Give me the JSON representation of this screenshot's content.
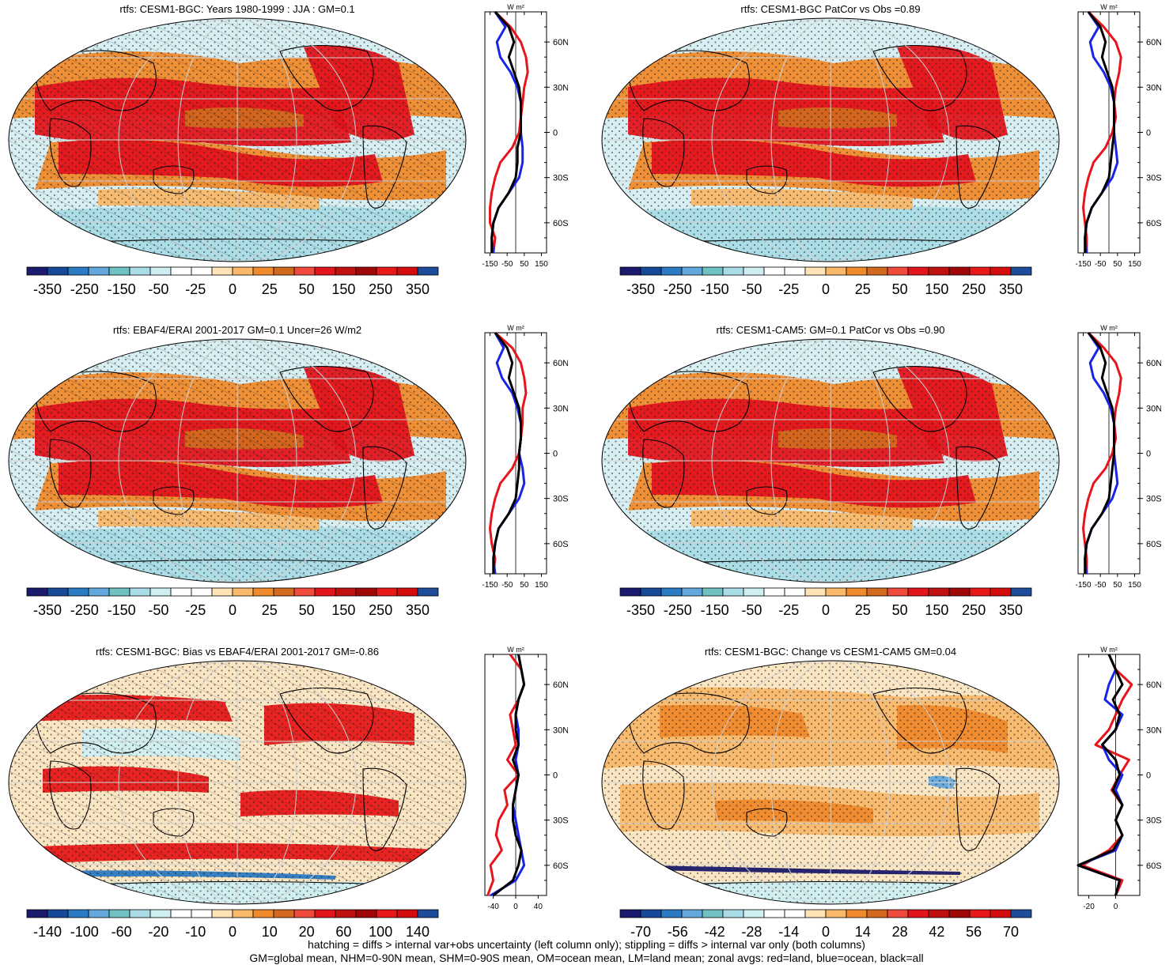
{
  "panels": [
    {
      "title": "rtfs: CESM1-BGC: Years 1980-1999 : JJA : GM=0.1",
      "colorbar": {
        "labels": [
          "-350",
          "-250",
          "-150",
          "-50",
          "-25",
          "0",
          "25",
          "50",
          "150",
          "250",
          "350"
        ]
      },
      "zonal": {
        "unit_label": "W m²",
        "xticks": [
          "-150",
          "-50",
          "50",
          "150"
        ],
        "xlim": [
          -180,
          180
        ],
        "lat_labels": [
          "60N",
          "30N",
          "0",
          "30S",
          "60S"
        ]
      }
    },
    {
      "title": "rtfs: CESM1-BGC PatCor vs Obs =0.89",
      "colorbar": {
        "labels": [
          "-350",
          "-250",
          "-150",
          "-50",
          "-25",
          "0",
          "25",
          "50",
          "150",
          "250",
          "350"
        ]
      },
      "zonal": {
        "unit_label": "W m²",
        "xticks": [
          "-150",
          "-50",
          "50",
          "150"
        ],
        "xlim": [
          -180,
          180
        ],
        "lat_labels": [
          "60N",
          "30N",
          "0",
          "30S",
          "60S"
        ]
      }
    },
    {
      "title": "rtfs: EBAF4/ERAI 2001-2017 GM=0.1 Uncer=26 W/m2",
      "colorbar": {
        "labels": [
          "-350",
          "-250",
          "-150",
          "-50",
          "-25",
          "0",
          "25",
          "50",
          "150",
          "250",
          "350"
        ]
      },
      "zonal": {
        "unit_label": "W m²",
        "xticks": [
          "-150",
          "-50",
          "50",
          "150"
        ],
        "xlim": [
          -180,
          180
        ],
        "lat_labels": [
          "60N",
          "30N",
          "0",
          "30S",
          "60S"
        ]
      }
    },
    {
      "title": "rtfs: CESM1-CAM5: GM=0.1 PatCor vs Obs =0.90",
      "colorbar": {
        "labels": [
          "-350",
          "-250",
          "-150",
          "-50",
          "-25",
          "0",
          "25",
          "50",
          "150",
          "250",
          "350"
        ]
      },
      "zonal": {
        "unit_label": "W m²",
        "xticks": [
          "-150",
          "-50",
          "50",
          "150"
        ],
        "xlim": [
          -180,
          180
        ],
        "lat_labels": [
          "60N",
          "30N",
          "0",
          "30S",
          "60S"
        ]
      }
    },
    {
      "title": "rtfs: CESM1-BGC: Bias vs EBAF4/ERAI 2001-2017 GM=-0.86",
      "colorbar": {
        "labels": [
          "-140",
          "-100",
          "-60",
          "-20",
          "-10",
          "0",
          "10",
          "20",
          "60",
          "100",
          "140"
        ]
      },
      "zonal": {
        "unit_label": "W m²",
        "xticks": [
          "-40",
          "0",
          "40"
        ],
        "xlim": [
          -55,
          55
        ],
        "lat_labels": [
          "60N",
          "30N",
          "0",
          "30S",
          "60S"
        ]
      }
    },
    {
      "title": "rtfs: CESM1-BGC: Change vs CESM1-CAM5 GM=0.04",
      "colorbar": {
        "labels": [
          "-70",
          "-56",
          "-42",
          "-28",
          "-14",
          "0",
          "14",
          "28",
          "42",
          "56",
          "70"
        ]
      },
      "zonal": {
        "unit_label": "W m²",
        "xticks": [
          "-20",
          "0"
        ],
        "xlim": [
          -28,
          18
        ],
        "lat_labels": [
          "60N",
          "30N",
          "0",
          "30S",
          "60S"
        ]
      }
    }
  ],
  "colorbar_colors": [
    "#1a1a6e",
    "#164a98",
    "#2a7ac4",
    "#62a8dc",
    "#70c2c2",
    "#a9dce6",
    "#cfeef2",
    "#ffffff",
    "#ffffff",
    "#fde3b5",
    "#f9b86a",
    "#f08a2c",
    "#d2691e",
    "#f04a3c",
    "#e4141c",
    "#c01010",
    "#a00808",
    "#e81818",
    "#d40c0c",
    "#1c4c9a"
  ],
  "chart_data": [
    {
      "type": "map",
      "panel": 1,
      "title": "rtfs: CESM1-BGC: Years 1980-1999 : JJA : GM=0.1",
      "zonal_profile": {
        "lat": [
          80,
          70,
          60,
          50,
          40,
          30,
          20,
          10,
          0,
          -10,
          -20,
          -30,
          -40,
          -50,
          -60,
          -70,
          -80
        ],
        "land": [
          -120,
          -30,
          30,
          60,
          70,
          50,
          40,
          30,
          20,
          -20,
          -90,
          -120,
          -140,
          -150,
          -150,
          -120,
          -130
        ],
        "ocean": [
          -120,
          -60,
          -110,
          -90,
          -30,
          10,
          30,
          30,
          30,
          40,
          40,
          20,
          -40,
          -100,
          -130,
          -140,
          -130
        ],
        "all": [
          -120,
          -40,
          -10,
          -40,
          -10,
          20,
          30,
          30,
          30,
          10,
          10,
          0,
          -40,
          -100,
          -130,
          -140,
          -140
        ]
      }
    },
    {
      "type": "map",
      "panel": 2,
      "title": "rtfs: CESM1-BGC PatCor vs Obs =0.89",
      "zonal_profile": {
        "lat": [
          80,
          70,
          60,
          50,
          40,
          30,
          20,
          10,
          0,
          -10,
          -20,
          -30,
          -40,
          -50,
          -60,
          -70,
          -80
        ],
        "land": [
          -120,
          -30,
          40,
          70,
          60,
          40,
          30,
          40,
          20,
          -20,
          -90,
          -120,
          -140,
          -150,
          -140,
          -130,
          -130
        ],
        "ocean": [
          -120,
          -60,
          -110,
          -90,
          -30,
          10,
          30,
          30,
          30,
          40,
          50,
          20,
          -40,
          -100,
          -130,
          -140,
          -130
        ],
        "all": [
          -120,
          -50,
          -20,
          -40,
          -10,
          20,
          30,
          30,
          30,
          20,
          10,
          0,
          -40,
          -100,
          -130,
          -140,
          -140
        ]
      }
    },
    {
      "type": "map",
      "panel": 3,
      "title": "rtfs: EBAF4/ERAI 2001-2017 GM=0.1 Uncer=26 W/m2",
      "zonal_profile": {
        "lat": [
          80,
          70,
          60,
          50,
          40,
          30,
          20,
          10,
          0,
          -10,
          -20,
          -30,
          -40,
          -50,
          -60,
          -70,
          -80
        ],
        "land": [
          -120,
          -20,
          30,
          50,
          60,
          40,
          40,
          30,
          20,
          -20,
          -90,
          -120,
          -140,
          -150,
          -140,
          -120,
          -130
        ],
        "ocean": [
          -120,
          -70,
          -110,
          -80,
          -20,
          10,
          30,
          30,
          20,
          40,
          50,
          20,
          -40,
          -100,
          -120,
          -130,
          -120
        ],
        "all": [
          -120,
          -50,
          -20,
          -40,
          -10,
          20,
          30,
          30,
          20,
          20,
          10,
          0,
          -40,
          -100,
          -120,
          -130,
          -130
        ]
      }
    },
    {
      "type": "map",
      "panel": 4,
      "title": "rtfs: CESM1-CAM5: GM=0.1 PatCor vs Obs =0.90",
      "zonal_profile": {
        "lat": [
          80,
          70,
          60,
          50,
          40,
          30,
          20,
          10,
          0,
          -10,
          -20,
          -30,
          -40,
          -50,
          -60,
          -70,
          -80
        ],
        "land": [
          -120,
          -30,
          40,
          70,
          60,
          40,
          30,
          40,
          20,
          -20,
          -90,
          -120,
          -140,
          -150,
          -140,
          -130,
          -130
        ],
        "ocean": [
          -120,
          -60,
          -110,
          -90,
          -30,
          10,
          30,
          30,
          30,
          40,
          50,
          20,
          -40,
          -100,
          -130,
          -140,
          -130
        ],
        "all": [
          -120,
          -50,
          -20,
          -40,
          -10,
          20,
          30,
          30,
          30,
          20,
          10,
          0,
          -40,
          -100,
          -130,
          -140,
          -140
        ]
      }
    },
    {
      "type": "map",
      "panel": 5,
      "title": "rtfs: CESM1-BGC: Bias vs EBAF4/ERAI 2001-2017 GM=-0.86",
      "zonal_profile": {
        "lat": [
          80,
          70,
          60,
          50,
          40,
          30,
          20,
          10,
          0,
          -10,
          -20,
          -30,
          -40,
          -50,
          -60,
          -70,
          -80
        ],
        "land": [
          -10,
          10,
          15,
          5,
          -10,
          -5,
          0,
          -15,
          5,
          -20,
          -15,
          -30,
          -35,
          -25,
          -45,
          -40,
          -50
        ],
        "ocean": [
          5,
          10,
          15,
          5,
          0,
          5,
          5,
          0,
          5,
          0,
          -5,
          0,
          5,
          10,
          15,
          0,
          -45
        ],
        "all": [
          5,
          10,
          15,
          5,
          0,
          0,
          5,
          -5,
          5,
          0,
          -5,
          -5,
          0,
          10,
          5,
          -5,
          -40
        ]
      }
    },
    {
      "type": "map",
      "panel": 6,
      "title": "rtfs: CESM1-BGC: Change vs CESM1-CAM5 GM=0.04",
      "zonal_profile": {
        "lat": [
          80,
          70,
          60,
          50,
          40,
          30,
          20,
          10,
          0,
          -10,
          -20,
          -30,
          -40,
          -50,
          -60,
          -70,
          -80
        ],
        "land": [
          -5,
          0,
          12,
          5,
          0,
          -5,
          -15,
          10,
          3,
          -3,
          5,
          0,
          5,
          -5,
          -25,
          5,
          0
        ],
        "ocean": [
          -5,
          0,
          -5,
          -8,
          5,
          0,
          -10,
          -5,
          5,
          0,
          5,
          0,
          5,
          0,
          -28,
          3,
          0
        ],
        "all": [
          -5,
          0,
          5,
          -2,
          3,
          0,
          -10,
          0,
          3,
          -2,
          5,
          0,
          5,
          -2,
          -28,
          3,
          0
        ]
      }
    }
  ],
  "footer": {
    "line1": "hatching = diffs > internal var+obs uncertainty (left column only); stippling = diffs > internal var only (both columns)",
    "line2": "GM=global mean, NHM=0-90N mean, SHM=0-90S mean, OM=ocean mean, LM=land mean; zonal avgs: red=land, blue=ocean, black=all"
  }
}
